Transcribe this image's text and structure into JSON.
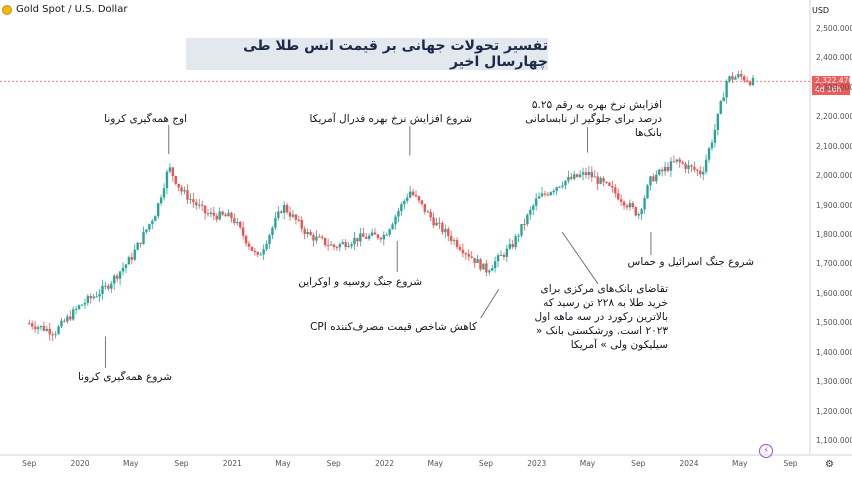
{
  "header": {
    "symbol": "Gold Spot / U.S. Dollar",
    "currency": "USD",
    "coin_icon": "gold-coin-icon"
  },
  "title": "تفسیر تحولات جهانی بر قیمت انس طلا طی چهارسال اخیر",
  "price_tag": {
    "price": "2,322.470",
    "countdown": "4d 16h"
  },
  "colors": {
    "up": "#26a69a",
    "down": "#ef5350",
    "price_line": "#ef5350",
    "annotation_line": "#555555"
  },
  "y_ticks": [
    "2,500.000",
    "2,400.000",
    "2,300.000",
    "2,200.000",
    "2,100.000",
    "2,000.000",
    "1,900.000",
    "1,800.000",
    "1,700.000",
    "1,600.000",
    "1,500.000",
    "1,400.000",
    "1,300.000",
    "1,200.000",
    "1,100.000"
  ],
  "x_ticks": [
    "Sep",
    "2020",
    "May",
    "Sep",
    "2021",
    "May",
    "Sep",
    "2022",
    "May",
    "Sep",
    "2023",
    "May",
    "Sep",
    "2024",
    "May",
    "Sep"
  ],
  "annotations": [
    {
      "id": "covid_start",
      "text": "شروع همه‌گیری کرونا"
    },
    {
      "id": "covid_peak",
      "text": "اوج همه‌گیری کرونا"
    },
    {
      "id": "russia_ukraine",
      "text": "شروع جنگ روسیه و اوکراین"
    },
    {
      "id": "fed_hikes",
      "text": "شروع افزایش نرخ بهره فدرال آمریکا"
    },
    {
      "id": "cpi",
      "text": "کاهش شاخص قیمت مصرف‌کننده  CPI"
    },
    {
      "id": "rate_525",
      "text": "افزایش نرخ بهره به رقم ۵.۲۵ درصد برای جلوگیر از نابسامانی بانک‌ها"
    },
    {
      "id": "central_banks",
      "text": "تقاضای بانک‌های مرکزی برای خرید طلا به ۲۲۸ تن رسید که بالاترین رکورد در سه ماهه اول ۲۰۲۳ است. ورشکستی بانک « سیلیکون ولی » آمریکا"
    },
    {
      "id": "israel_hamas",
      "text": "شروع جنگ اسرائیل و حماس"
    }
  ],
  "chart_data": {
    "type": "candlestick",
    "title": "تفسیر تحولات جهانی بر قیمت انس طلا طی چهارسال اخیر",
    "instrument": "Gold Spot / U.S. Dollar",
    "interval": "weekly",
    "ylabel": "USD",
    "ylim": [
      1050,
      2550
    ],
    "last_price": 2322.47,
    "x": [
      "2019-09",
      "2019-11",
      "2020-01",
      "2020-03",
      "2020-05",
      "2020-07",
      "2020-08",
      "2020-09",
      "2020-11",
      "2021-01",
      "2021-03",
      "2021-05",
      "2021-07",
      "2021-09",
      "2021-11",
      "2022-01",
      "2022-03",
      "2022-05",
      "2022-07",
      "2022-09",
      "2022-11",
      "2023-01",
      "2023-03",
      "2023-05",
      "2023-07",
      "2023-09",
      "2023-10",
      "2023-12",
      "2024-02",
      "2024-03",
      "2024-04",
      "2024-05",
      "2024-06"
    ],
    "close": [
      1500,
      1470,
      1560,
      1620,
      1720,
      1880,
      2030,
      1950,
      1870,
      1860,
      1720,
      1900,
      1800,
      1760,
      1790,
      1800,
      1950,
      1840,
      1760,
      1680,
      1760,
      1920,
      1980,
      2010,
      1950,
      1870,
      1990,
      2050,
      2010,
      2150,
      2330,
      2340,
      2320
    ],
    "annotation_points": [
      {
        "label": "شروع همه‌گیری کرونا",
        "x": "2020-03",
        "y": 1455
      },
      {
        "label": "اوج همه‌گیری کرونا",
        "x": "2020-08",
        "y": 2075
      },
      {
        "label": "شروع جنگ روسیه و اوکراین",
        "x": "2022-02",
        "y": 1780
      },
      {
        "label": "شروع افزایش نرخ بهره فدرال آمریکا",
        "x": "2022-03",
        "y": 2070
      },
      {
        "label": "کاهش شاخص قیمت مصرف‌کننده  CPI",
        "x": "2022-10",
        "y": 1615
      },
      {
        "label": "افزایش نرخ بهره به رقم ۵.۲۵ درصد",
        "x": "2023-05",
        "y": 2080
      },
      {
        "label": "تقاضای بانک‌های مرکزی برای خرید طلا",
        "x": "2023-03",
        "y": 1810
      },
      {
        "label": "شروع جنگ اسرائیل و حماس",
        "x": "2023-10",
        "y": 1810
      }
    ]
  }
}
